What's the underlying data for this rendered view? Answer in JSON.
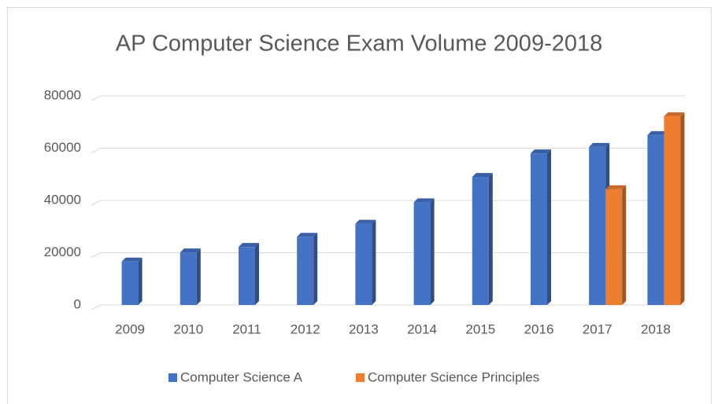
{
  "chart_data": {
    "type": "bar",
    "title": "AP Computer Science Exam Volume 2009-2018",
    "categories": [
      "2009",
      "2010",
      "2011",
      "2012",
      "2013",
      "2014",
      "2015",
      "2016",
      "2017",
      "2018"
    ],
    "series": [
      {
        "name": "Computer Science A",
        "color": "#4472c4",
        "values": [
          16600,
          20100,
          22200,
          26100,
          31100,
          39300,
          49000,
          58000,
          60500,
          65000
        ]
      },
      {
        "name": "Computer Science Principles",
        "color": "#ed7d31",
        "values": [
          null,
          null,
          null,
          null,
          null,
          null,
          null,
          null,
          44300,
          72200
        ]
      }
    ],
    "ylim": [
      0,
      80000
    ],
    "yticks": [
      0,
      20000,
      40000,
      60000,
      80000
    ],
    "grid": true,
    "legend": "bottom"
  }
}
